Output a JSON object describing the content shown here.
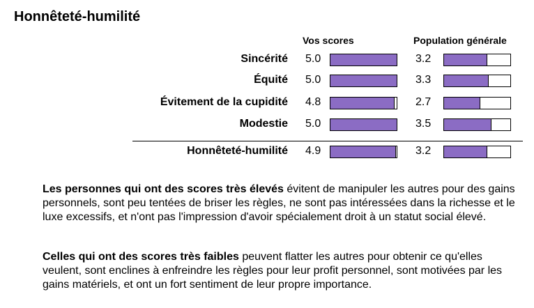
{
  "title": "Honnêteté-humilité",
  "chart_data": {
    "type": "bar",
    "headers": {
      "vos": "Vos scores",
      "pop": "Population générale"
    },
    "scale_max": 5,
    "rows": [
      {
        "label": "Sincérité",
        "vos": "5.0",
        "pop": "3.2"
      },
      {
        "label": "Équité",
        "vos": "5.0",
        "pop": "3.3"
      },
      {
        "label": "Évitement de la cupidité",
        "vos": "4.8",
        "pop": "2.7"
      },
      {
        "label": "Modestie",
        "vos": "5.0",
        "pop": "3.5"
      }
    ],
    "total": {
      "label": "Honnêteté-humilité",
      "vos": "4.9",
      "pop": "3.2"
    },
    "bar_color": "#8b6cc4"
  },
  "paragraphs": [
    {
      "bold": "Les personnes qui ont des scores très élevés",
      "text": " évitent de manipuler les autres pour des gains personnels, sont peu tentées de briser les règles, ne sont pas intéressées dans la richesse et le luxe excessifs, et n'ont pas l'impression d'avoir spécialement droit à un statut social élevé."
    },
    {
      "bold": "Celles qui ont des scores très faibles",
      "text": " peuvent flatter les autres pour obtenir ce qu'elles veulent, sont enclines à enfreindre les règles pour leur profit personnel, sont motivées par les gains matériels, et ont un fort sentiment de leur propre importance."
    }
  ]
}
